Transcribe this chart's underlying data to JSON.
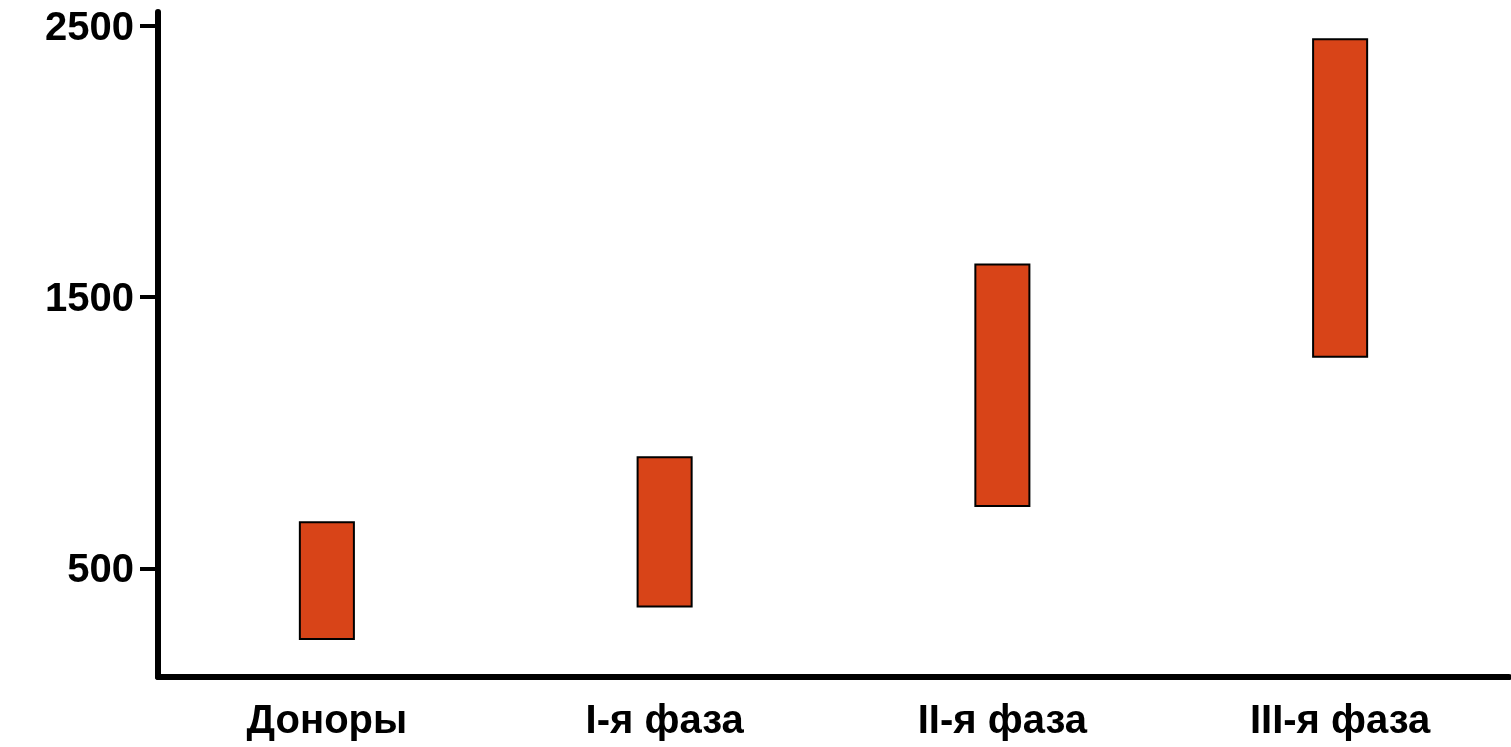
{
  "chart_data": {
    "type": "bar",
    "categories": [
      "Доноры",
      "I-я фаза",
      "II-я фаза",
      "III-я фаза"
    ],
    "base": [
      240,
      360,
      730,
      1280
    ],
    "values": [
      430,
      550,
      890,
      1170
    ],
    "color": "#d84418",
    "ylim": [
      100,
      2550
    ],
    "yticks": [
      500,
      1500,
      2500
    ],
    "grid": false
  }
}
